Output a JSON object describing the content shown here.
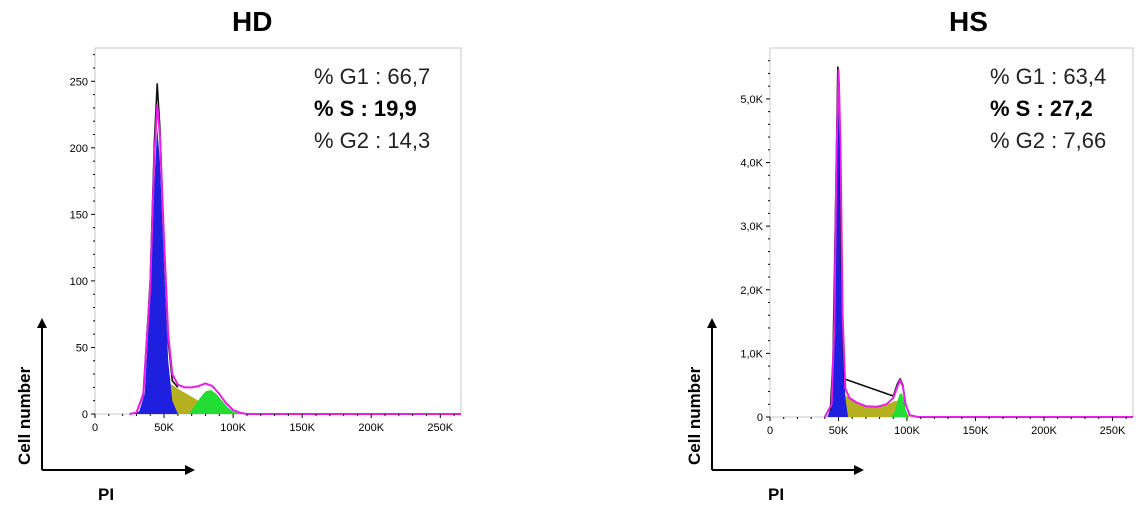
{
  "chart_data": [
    {
      "type": "area",
      "title": "HD",
      "xlabel": "PI",
      "ylabel": "Cell number",
      "xlim": [
        0,
        265000
      ],
      "ylim": [
        0,
        275
      ],
      "x_ticks": [
        "0",
        "50K",
        "100K",
        "150K",
        "200K",
        "250K"
      ],
      "x_tick_values": [
        0,
        50000,
        100000,
        150000,
        200000,
        250000
      ],
      "y_ticks": [
        "0",
        "50",
        "100",
        "150",
        "200",
        "250"
      ],
      "y_tick_values": [
        0,
        50,
        100,
        150,
        200,
        250
      ],
      "stats": [
        {
          "label": "% G1 : 66,7",
          "bold": false
        },
        {
          "label": "% S : 19,9",
          "bold": true
        },
        {
          "label": "% G2 : 14,3",
          "bold": false
        }
      ],
      "colors": {
        "g1": "#1f1fe0",
        "s": "#b5b020",
        "g2": "#22dd33",
        "fit": "#e81ee8",
        "hist": "#111111"
      },
      "series": [
        {
          "role": "g1",
          "x": [
            28000,
            32000,
            36000,
            40000,
            43000,
            45000,
            47000,
            50000,
            53000,
            56000,
            60000
          ],
          "y": [
            0,
            2,
            15,
            90,
            175,
            215,
            190,
            110,
            40,
            10,
            0
          ]
        },
        {
          "role": "s",
          "x": [
            30000,
            35000,
            40000,
            45000,
            48000,
            52000,
            56000,
            60000,
            65000,
            70000,
            75000,
            80000,
            85000,
            90000,
            95000,
            100000,
            104000
          ],
          "y": [
            0,
            3,
            8,
            16,
            21,
            23,
            22,
            19,
            16,
            13,
            10,
            8,
            6,
            4,
            2,
            1,
            0
          ]
        },
        {
          "role": "g2",
          "x": [
            68000,
            72000,
            76000,
            80000,
            84000,
            88000,
            92000,
            96000,
            100000,
            106000
          ],
          "y": [
            0,
            6,
            12,
            17,
            18,
            15,
            10,
            5,
            2,
            0
          ]
        },
        {
          "role": "fit",
          "x": [
            25000,
            30000,
            35000,
            40000,
            43000,
            45000,
            47000,
            50000,
            53000,
            56000,
            60000,
            65000,
            70000,
            75000,
            80000,
            85000,
            90000,
            95000,
            100000,
            105000,
            110000,
            130000,
            180000,
            230000,
            265000
          ],
          "y": [
            0,
            1,
            15,
            95,
            195,
            232,
            210,
            130,
            60,
            30,
            22,
            20,
            20,
            21,
            23,
            21,
            15,
            8,
            3,
            1,
            0,
            0,
            0,
            0,
            0
          ]
        },
        {
          "role": "hist",
          "x": [
            30000,
            35000,
            40000,
            43000,
            45000,
            47000,
            50000,
            53000,
            56000,
            60000
          ],
          "y": [
            1,
            14,
            100,
            205,
            248,
            215,
            125,
            55,
            25,
            20
          ]
        }
      ]
    },
    {
      "type": "area",
      "title": "HS",
      "xlabel": "PI",
      "ylabel": "Cell number",
      "xlim": [
        0,
        265000
      ],
      "ylim": [
        0,
        5800
      ],
      "x_ticks": [
        "0",
        "50K",
        "100K",
        "150K",
        "200K",
        "250K"
      ],
      "x_tick_values": [
        0,
        50000,
        100000,
        150000,
        200000,
        250000
      ],
      "y_ticks": [
        "0",
        "1,0K",
        "2,0K",
        "3,0K",
        "4,0K",
        "5,0K"
      ],
      "y_tick_values": [
        0,
        1000,
        2000,
        3000,
        4000,
        5000
      ],
      "stats": [
        {
          "label": "% G1 : 63,4",
          "bold": false
        },
        {
          "label": "% S : 27,2",
          "bold": true
        },
        {
          "label": "% G2 : 7,66",
          "bold": false
        }
      ],
      "colors": {
        "g1": "#1f1fe0",
        "s": "#b5b020",
        "g2": "#22dd33",
        "fit": "#e81ee8",
        "hist": "#111111"
      },
      "series": [
        {
          "role": "g1",
          "x": [
            42000,
            45000,
            47000,
            48500,
            50000,
            51500,
            53000,
            55000,
            57000
          ],
          "y": [
            0,
            200,
            1500,
            4000,
            5400,
            4300,
            1600,
            300,
            0
          ]
        },
        {
          "role": "s",
          "x": [
            42000,
            45000,
            48000,
            51000,
            54000,
            58000,
            63000,
            68000,
            73000,
            78000,
            83000,
            88000,
            91000,
            94000,
            96000,
            98000,
            100000,
            102000
          ],
          "y": [
            0,
            150,
            350,
            400,
            360,
            300,
            230,
            180,
            160,
            160,
            180,
            220,
            250,
            260,
            250,
            180,
            60,
            0
          ]
        },
        {
          "role": "g2",
          "x": [
            88000,
            91000,
            93000,
            94500,
            96000,
            97500,
            99000,
            101000
          ],
          "y": [
            0,
            80,
            250,
            350,
            380,
            300,
            120,
            0
          ]
        },
        {
          "role": "fit",
          "x": [
            40000,
            45000,
            47000,
            48500,
            50000,
            51500,
            53000,
            55000,
            58000,
            63000,
            70000,
            78000,
            85000,
            90000,
            93000,
            95000,
            97000,
            99000,
            102000,
            108000,
            130000,
            180000,
            230000,
            265000
          ],
          "y": [
            0,
            200,
            1500,
            4000,
            5450,
            4300,
            1600,
            450,
            300,
            230,
            170,
            160,
            200,
            300,
            480,
            580,
            480,
            200,
            30,
            0,
            0,
            0,
            0,
            0
          ]
        },
        {
          "role": "hist",
          "x": [
            44000,
            46000,
            48000,
            49500,
            50500,
            52000,
            54000,
            90000,
            93000,
            95000,
            97000,
            99000
          ],
          "y": [
            100,
            900,
            3500,
            5500,
            5200,
            2500,
            600,
            330,
            520,
            600,
            500,
            180
          ]
        }
      ]
    }
  ]
}
